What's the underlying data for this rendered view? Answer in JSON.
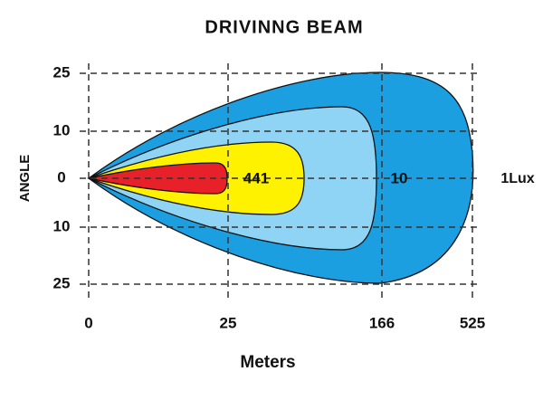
{
  "title": "DRIVINNG  BEAM",
  "x_axis": {
    "label": "Meters",
    "ticks": [
      0,
      25,
      166,
      525
    ]
  },
  "y_axis": {
    "label": "ANGLE",
    "ticks": [
      25,
      10,
      0,
      10,
      25
    ]
  },
  "zone_labels": [
    "441",
    "10",
    "1Lux"
  ]
}
